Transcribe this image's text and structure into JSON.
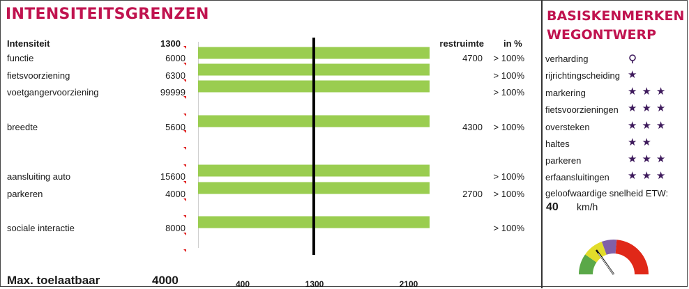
{
  "left_title": "INTENSITEITSGRENZEN",
  "right_title": [
    "BASISKENMERKEN",
    "WEGONTWERP"
  ],
  "headers": {
    "intensity": "Intensiteit",
    "value": "1300",
    "space": "restruimte",
    "percent": "in %"
  },
  "rows": [
    {
      "label": "functie",
      "value": "6000",
      "space": "4700",
      "percent": "> 100%"
    },
    {
      "label": "fietsvoorziening",
      "value": "6300",
      "space": "",
      "percent": "> 100%"
    },
    {
      "label": "voetgangervoorziening",
      "value": "99999",
      "space": "",
      "percent": "> 100%"
    },
    {
      "label": "breedte",
      "value": "5600",
      "space": "4300",
      "percent": "> 100%"
    },
    {
      "label": "aansluiting auto",
      "value": "15600",
      "space": "",
      "percent": "> 100%"
    },
    {
      "label": "parkeren",
      "value": "4000",
      "space": "2700",
      "percent": "> 100%"
    },
    {
      "label": "sociale interactie",
      "value": "8000",
      "space": "",
      "percent": "> 100%"
    }
  ],
  "footer": {
    "label": "Max. toelaatbaar",
    "value": "4000"
  },
  "chart_data": {
    "type": "bar",
    "orientation": "horizontal",
    "categories": [
      "functie",
      "fietsvoorziening",
      "voetgangervoorziening",
      "breedte",
      "aansluiting auto",
      "parkeren",
      "sociale interactie"
    ],
    "values": [
      6000,
      6300,
      99999,
      5600,
      15600,
      4000,
      8000
    ],
    "x_ticks": [
      "400",
      "1300",
      "2100"
    ],
    "reference_line": 1300,
    "bar_color": "#9acd50",
    "reference_color": "#000000"
  },
  "properties": [
    {
      "label": "verharding",
      "stars": "",
      "icon": "pin-icon"
    },
    {
      "label": "rijrichtingscheiding",
      "stars": "★"
    },
    {
      "label": "markering",
      "stars": "★★★"
    },
    {
      "label": "fietsvoorzieningen",
      "stars": "★★★"
    },
    {
      "label": "oversteken",
      "stars": "★★★"
    },
    {
      "label": "haltes",
      "stars": "★★"
    },
    {
      "label": "parkeren",
      "stars": "★★★"
    },
    {
      "label": "erfaansluitingen",
      "stars": "★★★"
    }
  ],
  "speed": {
    "label": "geloofwaardige snelheid ETW:",
    "value": "40",
    "unit": "km/h"
  },
  "gauge": {
    "colors": [
      "#5aa848",
      "#e2dc2a",
      "#8060a8",
      "#e02818"
    ]
  },
  "colors": {
    "accent": "#c0134f",
    "star": "#3e1a5c",
    "marker": "#e02020"
  }
}
